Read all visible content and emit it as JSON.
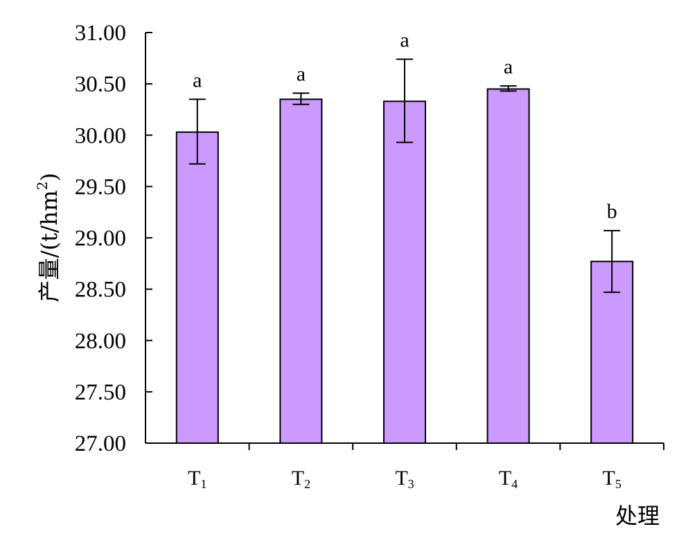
{
  "chart_data": {
    "type": "bar",
    "categories": [
      {
        "base": "T",
        "sub": "1"
      },
      {
        "base": "T",
        "sub": "2"
      },
      {
        "base": "T",
        "sub": "3"
      },
      {
        "base": "T",
        "sub": "4"
      },
      {
        "base": "T",
        "sub": "5"
      }
    ],
    "values": [
      30.03,
      30.35,
      30.33,
      30.45,
      28.77
    ],
    "error_low": [
      29.72,
      30.3,
      29.93,
      30.43,
      28.47
    ],
    "error_high": [
      30.35,
      30.41,
      30.74,
      30.48,
      29.07
    ],
    "significance": [
      "a",
      "a",
      "a",
      "a",
      "b"
    ],
    "ylabel": {
      "main": "产量/(t/hm",
      "sup": "2",
      "close": ")"
    },
    "xlabel": "处理",
    "ylim": [
      27.0,
      31.0
    ],
    "yticks": [
      "27.00",
      "27.50",
      "28.00",
      "28.50",
      "29.00",
      "29.50",
      "30.00",
      "30.50",
      "31.00"
    ],
    "bar_color": "#cc99ff",
    "bar_stroke": "#000000",
    "grid": false,
    "legend": "none"
  }
}
